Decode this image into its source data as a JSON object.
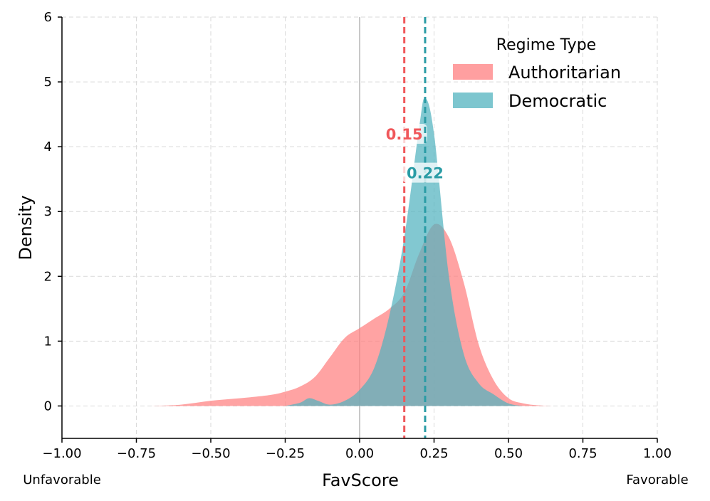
{
  "chart_data": {
    "type": "area",
    "xlabel": "FavScore",
    "ylabel": "Density",
    "xlim": [
      -1.0,
      1.0
    ],
    "ylim": [
      -0.5,
      6.0
    ],
    "xticks": [
      -1.0,
      -0.75,
      -0.5,
      -0.25,
      0.0,
      0.25,
      0.5,
      0.75,
      1.0
    ],
    "xtick_labels": [
      "−1.00",
      "−0.75",
      "−0.50",
      "−0.25",
      "0.00",
      "0.25",
      "0.50",
      "0.75",
      "1.00"
    ],
    "yticks": [
      0,
      1,
      2,
      3,
      4,
      5,
      6
    ],
    "ytick_labels": [
      "0",
      "1",
      "2",
      "3",
      "4",
      "5",
      "6"
    ],
    "grid": true,
    "edge_labels": {
      "left": "Unfavorable",
      "right": "Favorable"
    },
    "reference_line_x": 0.0,
    "legend": {
      "title": "Regime Type",
      "position": "top-right"
    },
    "series": [
      {
        "name": "Authoritarian",
        "color": "#ff7f80",
        "mean": 0.15,
        "mean_label": "0.15",
        "mean_color": "#f0575a",
        "x": [
          -0.7,
          -0.6,
          -0.5,
          -0.4,
          -0.3,
          -0.25,
          -0.2,
          -0.15,
          -0.1,
          -0.05,
          0.0,
          0.05,
          0.1,
          0.15,
          0.2,
          0.25,
          0.3,
          0.35,
          0.4,
          0.45,
          0.5,
          0.55,
          0.6,
          0.65
        ],
        "y": [
          0.0,
          0.02,
          0.08,
          0.12,
          0.17,
          0.22,
          0.3,
          0.45,
          0.75,
          1.05,
          1.2,
          1.35,
          1.5,
          1.75,
          2.35,
          2.8,
          2.6,
          1.9,
          0.95,
          0.4,
          0.12,
          0.04,
          0.01,
          0.0
        ]
      },
      {
        "name": "Democratic",
        "color": "#52b3bf",
        "mean": 0.22,
        "mean_label": "0.22",
        "mean_color": "#2a9ca5",
        "x": [
          -0.25,
          -0.2,
          -0.17,
          -0.14,
          -0.1,
          -0.05,
          0.0,
          0.05,
          0.1,
          0.15,
          0.2,
          0.22,
          0.25,
          0.3,
          0.35,
          0.4,
          0.45,
          0.5,
          0.55
        ],
        "y": [
          0.0,
          0.05,
          0.12,
          0.08,
          0.02,
          0.08,
          0.25,
          0.6,
          1.4,
          2.6,
          4.3,
          4.75,
          4.2,
          2.0,
          0.8,
          0.35,
          0.18,
          0.04,
          0.0
        ]
      }
    ]
  }
}
